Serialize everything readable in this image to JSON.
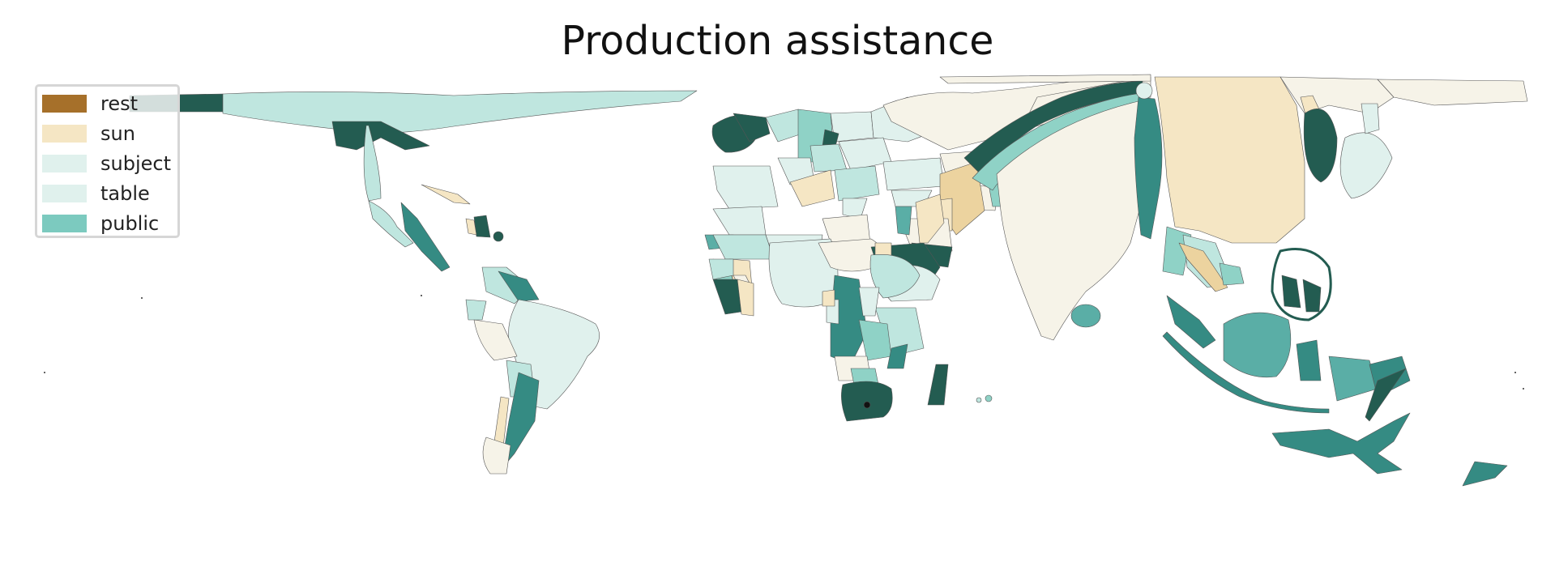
{
  "title": "Production assistance",
  "legend": {
    "items": [
      {
        "label": "rest",
        "color": "#a6702a"
      },
      {
        "label": "sun",
        "color": "#f5e6c4"
      },
      {
        "label": "subject",
        "color": "#e0f1ed"
      },
      {
        "label": "table",
        "color": "#e0f1ed"
      },
      {
        "label": "public",
        "color": "#7ccabf"
      }
    ]
  },
  "palette": {
    "cream": "#f6f3e8",
    "tan": "#ecd39f",
    "pale_teal": "#e0f1ed",
    "light_teal": "#bfe6df",
    "mid_teal": "#8fd2c6",
    "teal": "#5aaea6",
    "dark_teal": "#358b83",
    "darkest_teal": "#235c51"
  }
}
